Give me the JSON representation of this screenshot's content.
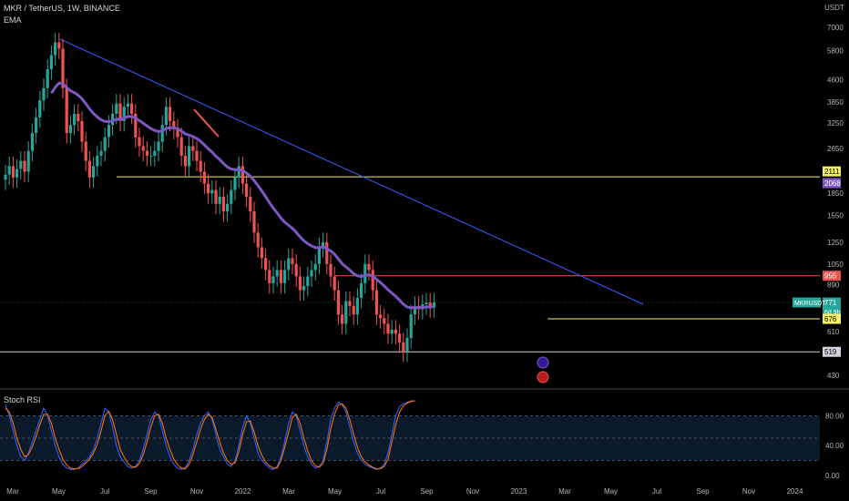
{
  "header": {
    "title": "MKR / TetherUS, 1W, BINANCE",
    "indicator": "EMA",
    "currency": "USDT"
  },
  "oscillator": {
    "title": "Stoch RSI"
  },
  "colors": {
    "background": "#000000",
    "up": "#26a69a",
    "down": "#ef5350",
    "ema": "#7e57c2",
    "trend": "#3d5afe",
    "support_yellow": "#f5f060",
    "resistance_red": "#ef5350",
    "support_white": "#d1d4dc",
    "stoch_k": "#2962ff",
    "stoch_d": "#ff6d00"
  },
  "chart_data": [
    {
      "type": "candlestick",
      "scale": "log",
      "timeframe": "1W",
      "price_axis": {
        "ticks": [
          "7000",
          "5800",
          "4600",
          "3850",
          "3250",
          "2650",
          "2111",
          "2068",
          "1850",
          "1550",
          "1250",
          "1050",
          "955",
          "890",
          "771",
          "676",
          "610",
          "519",
          "430"
        ]
      },
      "x_axis": {
        "ticks": [
          "Mar",
          "May",
          "Jul",
          "Sep",
          "Nov",
          "2022",
          "Mar",
          "May",
          "Jul",
          "Sep",
          "Nov",
          "2023",
          "Mar",
          "May",
          "Jul",
          "Sep",
          "Nov",
          "2024"
        ]
      },
      "price_labels": [
        {
          "value": "2111",
          "style": "yellow"
        },
        {
          "value": "2068",
          "style": "ema"
        },
        {
          "value": "955",
          "style": "red"
        },
        {
          "value": "771",
          "style": "current",
          "symbol": "MKRUSDT",
          "countdown": "6d 9h"
        },
        {
          "value": "676",
          "style": "yellow"
        },
        {
          "value": "519",
          "style": "white"
        }
      ],
      "series": [
        {
          "name": "EMA",
          "type": "line",
          "values_by_week": "smoothed moving average from ~5200 (May 2021) to ~2068 (Feb 2023)"
        }
      ],
      "horizontal_levels": [
        2111,
        955,
        676,
        519
      ],
      "trendline": {
        "from": {
          "date": "2021-05",
          "price": 6500
        },
        "to": {
          "date": "2023-06",
          "price": 780
        }
      },
      "ohlc_close_approx": [
        2150,
        2300,
        2100,
        2250,
        2400,
        2200,
        2600,
        3000,
        3400,
        3900,
        4300,
        5000,
        5600,
        6200,
        5900,
        4300,
        3000,
        3200,
        3500,
        3300,
        2800,
        2400,
        2100,
        2300,
        2500,
        2600,
        2900,
        3200,
        3500,
        3800,
        3300,
        3700,
        3800,
        3500,
        2900,
        2700,
        2600,
        2500,
        2500,
        2600,
        2800,
        3200,
        3700,
        3300,
        3100,
        2900,
        2500,
        2300,
        2700,
        2600,
        2400,
        2200,
        2000,
        1850,
        1900,
        1700,
        1800,
        1600,
        1700,
        1900,
        2100,
        2300,
        2000,
        1800,
        1600,
        1350,
        1200,
        1100,
        1000,
        900,
        950,
        1000,
        900,
        1000,
        1100,
        1050,
        950,
        850,
        880,
        950,
        1000,
        1050,
        1200,
        1250,
        1050,
        950,
        850,
        700,
        650,
        780,
        750,
        700,
        800,
        900,
        1050,
        1000,
        850,
        700,
        680,
        650,
        600,
        620,
        600,
        560,
        520,
        580,
        700,
        750,
        730,
        760,
        770,
        740,
        771
      ]
    },
    {
      "type": "line",
      "name": "Stoch RSI",
      "y_axis": {
        "ticks": [
          "80.00",
          "40.00",
          "0.00"
        ],
        "ylim": [
          0,
          100
        ]
      },
      "band": [
        20,
        80
      ],
      "series": [
        {
          "name": "K",
          "values": [
            95,
            80,
            60,
            40,
            25,
            20,
            30,
            45,
            60,
            75,
            90,
            80,
            60,
            40,
            25,
            15,
            10,
            8,
            8,
            10,
            15,
            20,
            25,
            35,
            50,
            70,
            90,
            85,
            65,
            40,
            25,
            18,
            12,
            10,
            12,
            20,
            35,
            55,
            75,
            85,
            80,
            60,
            40,
            25,
            15,
            10,
            8,
            10,
            20,
            35,
            55,
            70,
            80,
            85,
            75,
            55,
            35,
            25,
            15,
            12,
            20,
            40,
            65,
            80,
            70,
            50,
            30,
            20,
            15,
            10,
            8,
            12,
            25,
            45,
            70,
            85,
            80,
            60,
            40,
            25,
            15,
            10,
            12,
            20,
            45,
            75,
            90,
            98,
            95,
            85,
            65,
            45,
            30,
            20,
            15,
            12,
            10,
            8,
            10,
            15,
            30,
            55,
            80,
            92,
            96,
            98,
            100,
            100
          ]
        },
        {
          "name": "D",
          "values": [
            90,
            85,
            70,
            50,
            35,
            25,
            28,
            38,
            52,
            68,
            82,
            82,
            70,
            50,
            35,
            22,
            14,
            10,
            9,
            9,
            12,
            17,
            22,
            30,
            42,
            60,
            80,
            86,
            75,
            55,
            35,
            25,
            16,
            12,
            11,
            16,
            28,
            45,
            65,
            80,
            82,
            70,
            50,
            35,
            22,
            14,
            10,
            9,
            15,
            28,
            45,
            62,
            75,
            82,
            78,
            62,
            45,
            30,
            20,
            15,
            17,
            32,
            55,
            72,
            73,
            58,
            40,
            27,
            18,
            13,
            10,
            10,
            20,
            38,
            58,
            78,
            82,
            70,
            50,
            33,
            20,
            13,
            11,
            16,
            35,
            62,
            82,
            94,
            96,
            90,
            75,
            55,
            38,
            25,
            18,
            14,
            11,
            9,
            9,
            12,
            22,
            45,
            68,
            85,
            93,
            97,
            99,
            100
          ]
        }
      ]
    }
  ]
}
